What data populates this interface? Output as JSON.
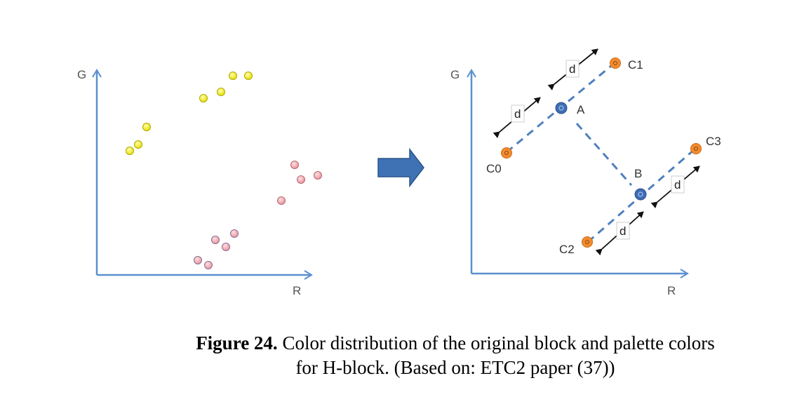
{
  "left_panel": {
    "y_axis_label": "G",
    "x_axis_label": "R"
  },
  "right_panel": {
    "y_axis_label": "G",
    "x_axis_label": "R",
    "points": {
      "C0": "C0",
      "C1": "C1",
      "C2": "C2",
      "C3": "C3",
      "A": "A",
      "B": "B"
    },
    "distance_label": "d"
  },
  "caption": {
    "label": "Figure 24.",
    "line1": "Color distribution of the original block and palette colors",
    "line2": "for H-block. (Based on: ETC2 paper (37))"
  },
  "colors": {
    "axis": "#5b8fd0",
    "yellow_point": "#ffff00",
    "pink_point": "#f3a7ac",
    "orange_point": "#f58b2c",
    "blue_point": "#3e6db5",
    "dashed_line": "#4f81bd",
    "arrow_big": "#3a6aa8"
  }
}
